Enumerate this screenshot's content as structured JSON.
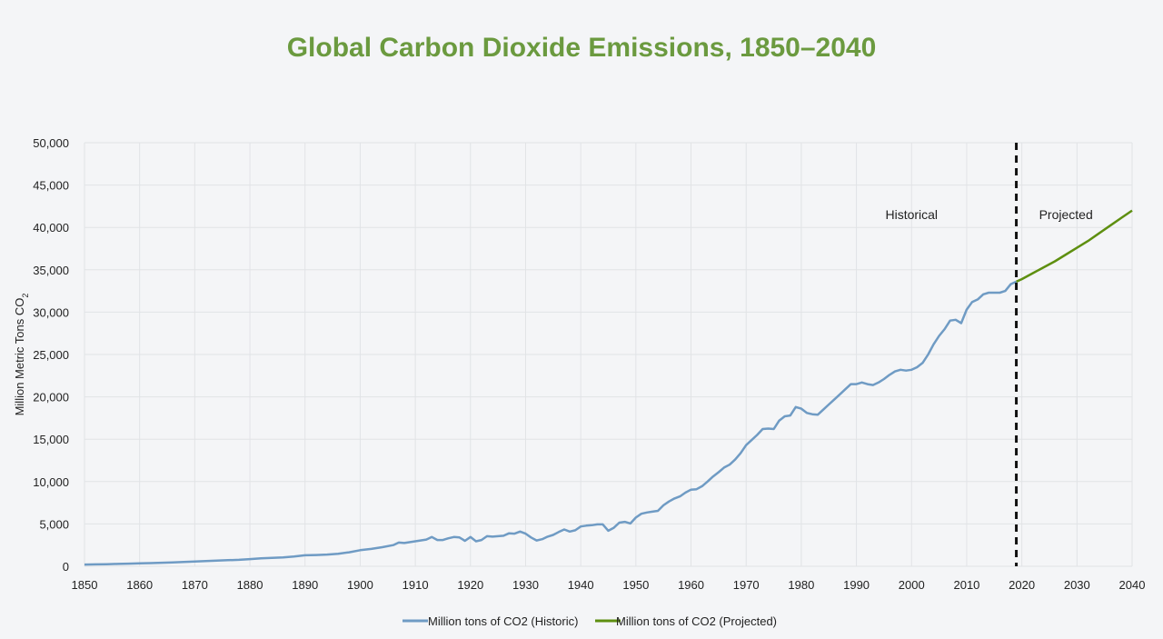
{
  "chart_data": {
    "type": "line",
    "title": "Global Carbon Dioxide Emissions, 1850–2040",
    "xlabel": "",
    "ylabel": "Million Metric Tons CO",
    "ylabel_subscript": "2",
    "xlim": [
      1850,
      2040
    ],
    "ylim": [
      0,
      50000
    ],
    "x_ticks": [
      1850,
      1860,
      1870,
      1880,
      1890,
      1900,
      1910,
      1920,
      1930,
      1940,
      1950,
      1960,
      1970,
      1980,
      1990,
      2000,
      2010,
      2020,
      2030,
      2040
    ],
    "y_ticks": [
      0,
      5000,
      10000,
      15000,
      20000,
      25000,
      30000,
      35000,
      40000,
      45000,
      50000
    ],
    "y_tick_labels": [
      "0",
      "5,000",
      "10,000",
      "15,000",
      "20,000",
      "25,000",
      "30,000",
      "35,000",
      "40,000",
      "45,000",
      "50,000"
    ],
    "grid": true,
    "legend_position": "bottom",
    "divider_year": 2019,
    "annotations": [
      {
        "text": "Historical",
        "x": 2000,
        "y": 41000
      },
      {
        "text": "Projected",
        "x": 2028,
        "y": 41000
      }
    ],
    "series": [
      {
        "name": "Million tons of CO2 (Historic)",
        "color": "#6f9bc4",
        "x": [
          1850,
          1852,
          1854,
          1856,
          1858,
          1860,
          1862,
          1864,
          1866,
          1868,
          1870,
          1872,
          1874,
          1876,
          1878,
          1880,
          1882,
          1884,
          1886,
          1888,
          1890,
          1892,
          1894,
          1896,
          1898,
          1900,
          1902,
          1904,
          1906,
          1907,
          1908,
          1910,
          1912,
          1913,
          1914,
          1915,
          1916,
          1917,
          1918,
          1919,
          1920,
          1921,
          1922,
          1923,
          1924,
          1926,
          1927,
          1928,
          1929,
          1930,
          1931,
          1932,
          1933,
          1934,
          1935,
          1936,
          1937,
          1938,
          1939,
          1940,
          1941,
          1942,
          1943,
          1944,
          1945,
          1946,
          1947,
          1948,
          1949,
          1950,
          1951,
          1952,
          1953,
          1954,
          1955,
          1956,
          1957,
          1958,
          1959,
          1960,
          1961,
          1962,
          1963,
          1964,
          1965,
          1966,
          1967,
          1968,
          1969,
          1970,
          1971,
          1972,
          1973,
          1974,
          1975,
          1976,
          1977,
          1978,
          1979,
          1980,
          1981,
          1982,
          1983,
          1984,
          1985,
          1986,
          1987,
          1988,
          1989,
          1990,
          1991,
          1992,
          1993,
          1994,
          1995,
          1996,
          1997,
          1998,
          1999,
          2000,
          2001,
          2002,
          2003,
          2004,
          2005,
          2006,
          2007,
          2008,
          2009,
          2010,
          2011,
          2012,
          2013,
          2014,
          2015,
          2016,
          2017,
          2018,
          2019
        ],
        "values": [
          200,
          220,
          250,
          280,
          310,
          350,
          380,
          420,
          460,
          500,
          560,
          620,
          680,
          720,
          760,
          850,
          930,
          1000,
          1050,
          1150,
          1300,
          1330,
          1380,
          1480,
          1650,
          1900,
          2050,
          2250,
          2500,
          2800,
          2750,
          2950,
          3150,
          3450,
          3100,
          3100,
          3300,
          3450,
          3400,
          3000,
          3450,
          2950,
          3100,
          3550,
          3500,
          3600,
          3900,
          3850,
          4100,
          3850,
          3400,
          3050,
          3200,
          3500,
          3700,
          4050,
          4350,
          4100,
          4250,
          4700,
          4800,
          4850,
          4950,
          4950,
          4200,
          4550,
          5150,
          5250,
          5050,
          5750,
          6200,
          6350,
          6450,
          6550,
          7200,
          7650,
          8000,
          8250,
          8700,
          9050,
          9100,
          9450,
          10000,
          10600,
          11100,
          11650,
          12000,
          12600,
          13350,
          14300,
          14900,
          15500,
          16200,
          16250,
          16200,
          17200,
          17700,
          17800,
          18800,
          18600,
          18100,
          17950,
          17900,
          18500,
          19100,
          19700,
          20300,
          20900,
          21500,
          21500,
          21700,
          21500,
          21400,
          21700,
          22100,
          22600,
          23000,
          23200,
          23100,
          23200,
          23500,
          24000,
          25000,
          26200,
          27200,
          28000,
          29000,
          29100,
          28700,
          30300,
          31200,
          31500,
          32100,
          32300,
          32300,
          32300,
          32500,
          33300,
          33600
        ]
      },
      {
        "name": "Million tons of CO2 (Projected)",
        "color": "#5e8f10",
        "x": [
          2019,
          2020,
          2022,
          2024,
          2026,
          2028,
          2030,
          2032,
          2034,
          2036,
          2038,
          2040
        ],
        "values": [
          33600,
          33900,
          34600,
          35300,
          36000,
          36800,
          37600,
          38400,
          39300,
          40200,
          41100,
          42000
        ]
      }
    ]
  }
}
